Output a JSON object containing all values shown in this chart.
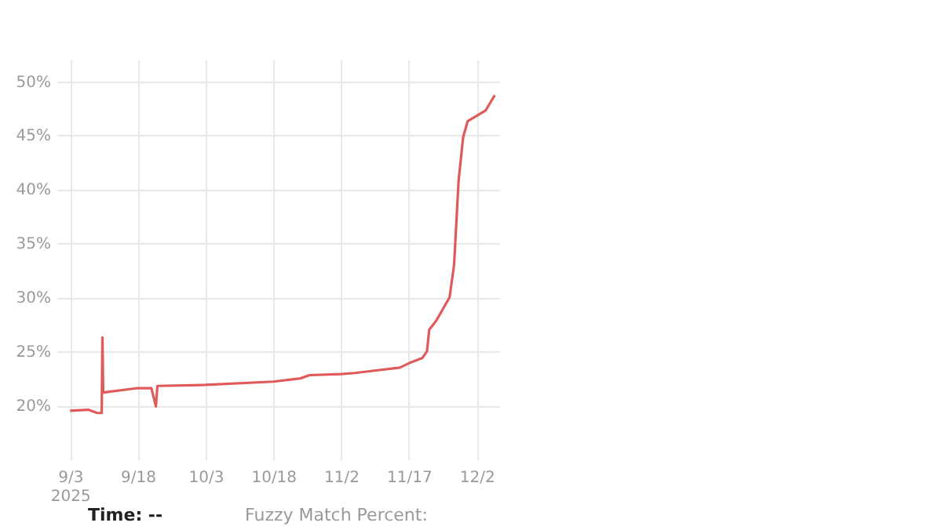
{
  "chart_data": {
    "type": "line",
    "x": [
      "2025-09-03",
      "2025-09-07",
      "2025-09-09",
      "2025-09-10",
      "2025-09-10T04:00",
      "2025-09-10T08:00",
      "2025-09-18",
      "2025-09-21",
      "2025-09-22",
      "2025-09-22T08:00",
      "2025-10-03",
      "2025-10-18",
      "2025-10-24",
      "2025-10-26",
      "2025-11-02",
      "2025-11-05",
      "2025-11-09",
      "2025-11-15",
      "2025-11-17",
      "2025-11-20",
      "2025-11-21",
      "2025-11-21T12:00",
      "2025-11-23",
      "2025-11-26",
      "2025-11-27",
      "2025-11-28",
      "2025-11-29",
      "2025-11-30",
      "2025-12-04",
      "2025-12-06"
    ],
    "series": [
      {
        "color": "#e05a5a",
        "values": [
          19.5,
          19.6,
          19.3,
          19.3,
          26.3,
          21.2,
          21.6,
          21.6,
          19.9,
          21.8,
          21.9,
          22.2,
          22.5,
          22.8,
          22.9,
          23.0,
          23.2,
          23.5,
          23.9,
          24.4,
          25.0,
          27.0,
          27.8,
          30.0,
          33.0,
          40.8,
          44.8,
          46.3,
          47.3,
          48.7
        ]
      }
    ],
    "xlim": [
      "2025-08-31",
      "2025-12-07"
    ],
    "xticks": [
      {
        "value": "2025-09-03",
        "label": "9/3\n2025"
      },
      {
        "value": "2025-09-18",
        "label": "9/18"
      },
      {
        "value": "2025-10-03",
        "label": "10/3"
      },
      {
        "value": "2025-10-18",
        "label": "10/18"
      },
      {
        "value": "2025-11-02",
        "label": "11/2"
      },
      {
        "value": "2025-11-17",
        "label": "11/17"
      },
      {
        "value": "2025-12-02",
        "label": "12/2"
      }
    ],
    "ylim": [
      15,
      52
    ],
    "yticks": [
      {
        "value": 20,
        "label": "20%"
      },
      {
        "value": 25,
        "label": "25%"
      },
      {
        "value": 30,
        "label": "30%"
      },
      {
        "value": 35,
        "label": "35%"
      },
      {
        "value": 40,
        "label": "40%"
      },
      {
        "value": 45,
        "label": "45%"
      },
      {
        "value": 50,
        "label": "50%"
      }
    ],
    "grid": true,
    "marker": "none",
    "line_style": "solid",
    "annotations": [
      "Time:  --",
      "Fuzzy Match Percent:"
    ]
  }
}
